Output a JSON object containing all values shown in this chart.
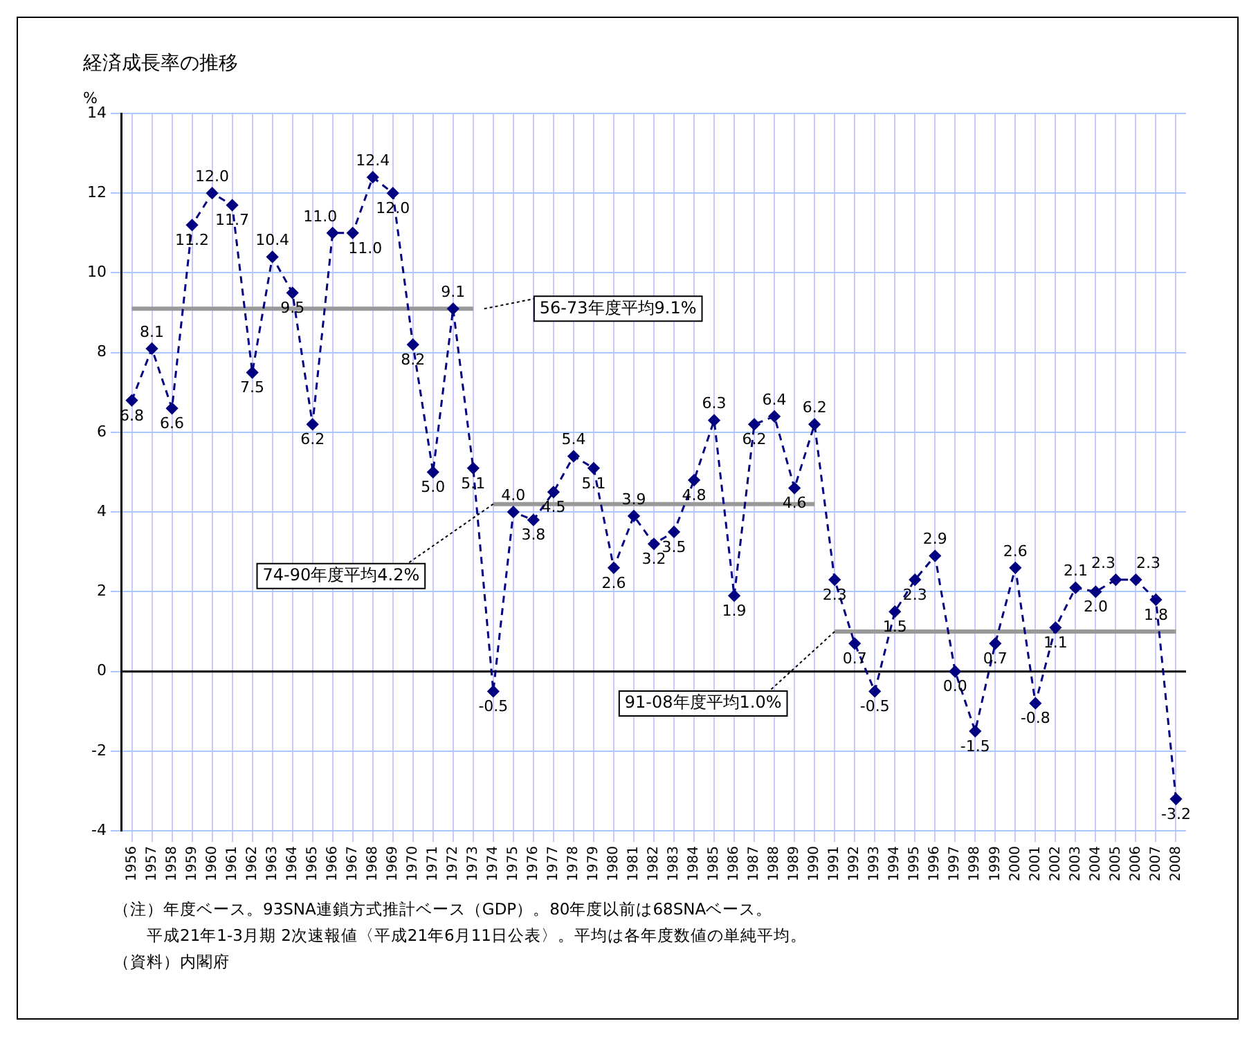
{
  "chart_data": {
    "type": "line",
    "title": "経済成長率の推移",
    "ylabel": "%",
    "categories": [
      "1956",
      "1957",
      "1958",
      "1959",
      "1960",
      "1961",
      "1962",
      "1963",
      "1964",
      "1965",
      "1966",
      "1967",
      "1968",
      "1969",
      "1970",
      "1971",
      "1972",
      "1973",
      "1974",
      "1975",
      "1976",
      "1977",
      "1978",
      "1979",
      "1980",
      "1981",
      "1982",
      "1983",
      "1984",
      "1985",
      "1986",
      "1987",
      "1988",
      "1989",
      "1990",
      "1991",
      "1992",
      "1993",
      "1994",
      "1995",
      "1996",
      "1997",
      "1998",
      "1999",
      "2000",
      "2001",
      "2002",
      "2003",
      "2004",
      "2005",
      "2006",
      "2007",
      "2008"
    ],
    "series": [
      {
        "color": "#000080",
        "marker": "diamond",
        "line_style": "dashed",
        "values": [
          6.8,
          8.1,
          6.6,
          11.2,
          12.0,
          11.7,
          7.5,
          10.4,
          9.5,
          6.2,
          11.0,
          11.0,
          12.4,
          12.0,
          8.2,
          5.0,
          9.1,
          5.1,
          -0.5,
          4.0,
          3.8,
          4.5,
          5.4,
          5.1,
          2.6,
          3.9,
          3.2,
          3.5,
          4.8,
          6.3,
          1.9,
          6.2,
          6.4,
          4.6,
          6.2,
          2.3,
          0.7,
          -0.5,
          1.5,
          2.3,
          2.9,
          0.0,
          -1.5,
          0.7,
          2.6,
          -0.8,
          1.1,
          2.1,
          2.0,
          2.3,
          2.3,
          1.8,
          -3.2
        ],
        "value_labels": [
          "6.8",
          "8.1",
          "6.6",
          "11.2",
          "12.0",
          "11.7",
          "7.5",
          "10.4",
          "9.5",
          "6.2",
          "11.0",
          "11.0",
          "12.4",
          "12.0",
          "8.2",
          "5.0",
          "9.1",
          "5.1",
          "-0.5",
          "4.0",
          "3.8",
          "4.5",
          "5.4",
          "5.1",
          "2.6",
          "3.9",
          "3.2",
          "3.5",
          "4.8",
          "6.3",
          "1.9",
          "6.2",
          "6.4",
          "4.6",
          "6.2",
          "2.3",
          "0.7",
          "-0.5",
          "1.5",
          "2.3",
          "2.9",
          "0.0",
          "-1.5",
          "0.7",
          "2.6",
          "-0.8",
          "1.1",
          "2.1",
          "2.0",
          "2.3",
          "2.3",
          "1.8",
          "-3.2"
        ]
      },
      {
        "type": "line",
        "color": "#999999",
        "marker": "none",
        "line_style": "solid",
        "values": [
          9.1,
          9.1,
          9.1,
          9.1,
          9.1,
          9.1,
          9.1,
          9.1,
          9.1,
          9.1,
          9.1,
          9.1,
          9.1,
          9.1,
          9.1,
          9.1,
          9.1,
          9.1,
          null,
          null,
          null,
          null,
          null,
          null,
          null,
          null,
          null,
          null,
          null,
          null,
          null,
          null,
          null,
          null,
          null,
          null,
          null,
          null,
          null,
          null,
          null,
          null,
          null,
          null,
          null,
          null,
          null,
          null,
          null,
          null,
          null,
          null,
          null
        ]
      },
      {
        "type": "line",
        "color": "#999999",
        "marker": "none",
        "line_style": "solid",
        "values": [
          null,
          null,
          null,
          null,
          null,
          null,
          null,
          null,
          null,
          null,
          null,
          null,
          null,
          null,
          null,
          null,
          null,
          null,
          4.2,
          4.2,
          4.2,
          4.2,
          4.2,
          4.2,
          4.2,
          4.2,
          4.2,
          4.2,
          4.2,
          4.2,
          4.2,
          4.2,
          4.2,
          4.2,
          4.2,
          null,
          null,
          null,
          null,
          null,
          null,
          null,
          null,
          null,
          null,
          null,
          null,
          null,
          null,
          null,
          null,
          null,
          null
        ]
      },
      {
        "type": "line",
        "color": "#999999",
        "marker": "none",
        "line_style": "solid",
        "values": [
          null,
          null,
          null,
          null,
          null,
          null,
          null,
          null,
          null,
          null,
          null,
          null,
          null,
          null,
          null,
          null,
          null,
          null,
          null,
          null,
          null,
          null,
          null,
          null,
          null,
          null,
          null,
          null,
          null,
          null,
          null,
          null,
          null,
          null,
          null,
          1.0,
          1.0,
          1.0,
          1.0,
          1.0,
          1.0,
          1.0,
          1.0,
          1.0,
          1.0,
          1.0,
          1.0,
          1.0,
          1.0,
          1.0,
          1.0,
          1.0,
          1.0
        ]
      }
    ],
    "ylim": [
      -4,
      14
    ],
    "yticks": [
      -4,
      -2,
      0,
      2,
      4,
      6,
      8,
      10,
      12,
      14
    ],
    "grid": true,
    "legend": false,
    "annotations": [
      {
        "text": "56-73年度平均9.1%",
        "x": "1973",
        "y": 9.1
      },
      {
        "text": "74-90年度平均4.2%",
        "x": "1974",
        "y": 4.2
      },
      {
        "text": "91-08年度平均1.0%",
        "x": "1991",
        "y": 1.0
      },
      "（注）年度ベース。93SNA連鎖方式推計ベース（GDP）。80年度以前は68SNAベース。",
      "　　平成21年1-3月期 2次速報値〈平成21年6月11日公表〉。平均は各年度数値の単純平均。",
      "（資料）内閣府"
    ]
  }
}
